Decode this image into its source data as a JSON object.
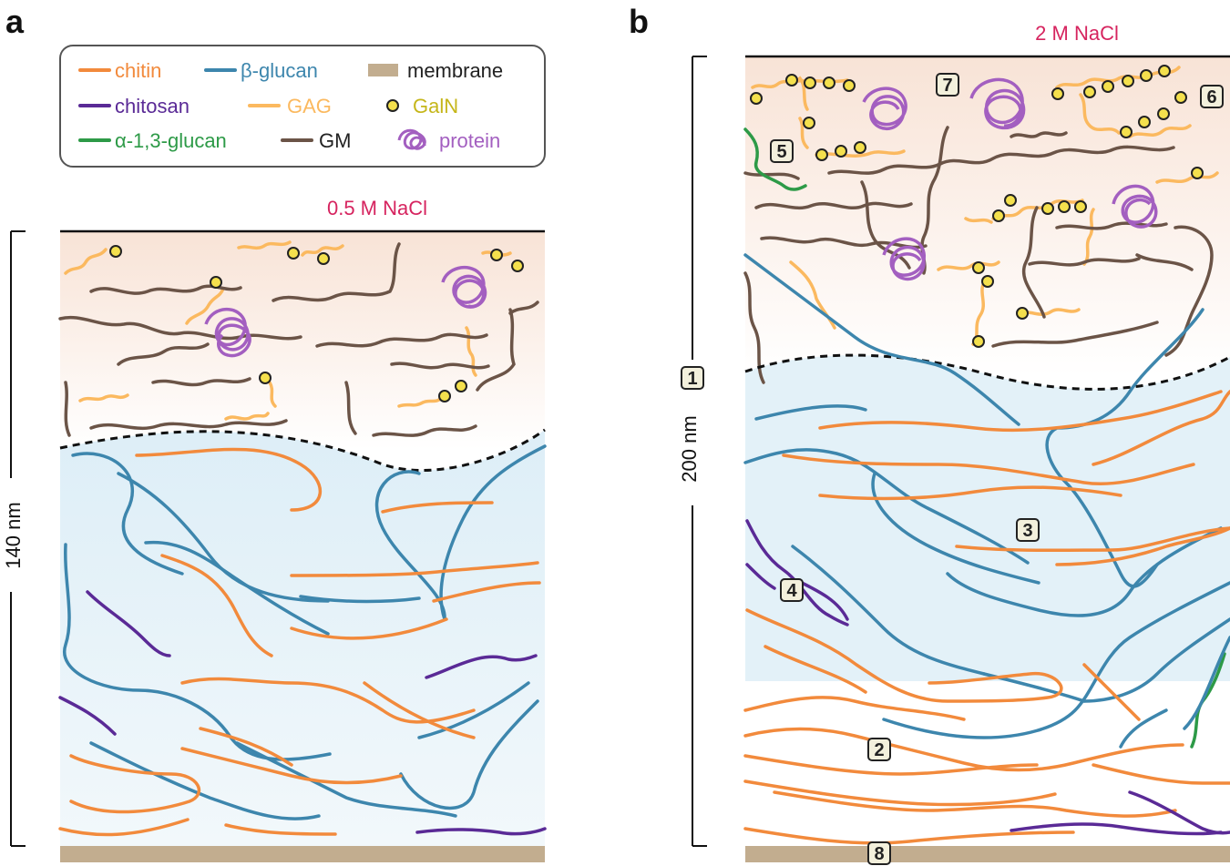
{
  "panels": {
    "a": {
      "letter": "a",
      "condition": "0.5 M NaCl",
      "thickness": "140 nm"
    },
    "b": {
      "letter": "b",
      "condition": "2 M NaCl",
      "thickness": "200 nm"
    }
  },
  "legend": [
    {
      "key": "chitin",
      "label": "chitin",
      "color": "#f28a3c",
      "kind": "line"
    },
    {
      "key": "bglucan",
      "label": "β-glucan",
      "color": "#3d86ad",
      "kind": "line"
    },
    {
      "key": "membrane",
      "label": "membrane",
      "color": "#c2ad8f",
      "kind": "bar",
      "textColor": "#222222"
    },
    {
      "key": "chitosan",
      "label": "chitosan",
      "color": "#5a2a96",
      "kind": "line"
    },
    {
      "key": "gag",
      "label": "GAG",
      "color": "#fbb95f",
      "kind": "line"
    },
    {
      "key": "galn",
      "label": "GalN",
      "color": "#f4e04d",
      "kind": "dot",
      "textColor": "#c5b61a"
    },
    {
      "key": "a13glucan",
      "label": "α-1,3-glucan",
      "color": "#2d9a47",
      "kind": "line"
    },
    {
      "key": "gm",
      "label": "GM",
      "color": "#6b5447",
      "kind": "line",
      "textColor": "#222222"
    },
    {
      "key": "protein",
      "label": "protein",
      "color": "#a35fc0",
      "kind": "protein"
    }
  ],
  "colors": {
    "chitin": "#f28a3c",
    "bglucan": "#3d86ad",
    "chitosan": "#5a2a96",
    "gag": "#fbb95f",
    "galn": "#f4e04d",
    "a13glucan": "#2d9a47",
    "gm": "#6b5447",
    "protein": "#a35fc0",
    "membrane": "#c2ad8f",
    "condition_label": "#d6245f",
    "outer_layer": "#f8e3d6",
    "inner_layer": "#e3f1f8"
  },
  "markers": [
    "1",
    "2",
    "3",
    "4",
    "5",
    "6",
    "7",
    "8"
  ]
}
